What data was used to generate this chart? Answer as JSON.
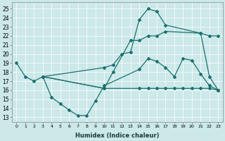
{
  "xlabel": "Humidex (Indice chaleur)",
  "bg_color": "#cce8e8",
  "line_color": "#1a7070",
  "xlim": [
    -0.5,
    23.5
  ],
  "ylim": [
    12.5,
    25.7
  ],
  "yticks": [
    13,
    14,
    15,
    16,
    17,
    18,
    19,
    20,
    21,
    22,
    23,
    24,
    25
  ],
  "xticks": [
    0,
    1,
    2,
    3,
    4,
    5,
    6,
    7,
    8,
    9,
    10,
    11,
    12,
    13,
    14,
    15,
    16,
    17,
    18,
    19,
    20,
    21,
    22,
    23
  ],
  "line1_x": [
    0,
    1,
    2,
    3,
    10,
    11,
    12,
    13,
    14,
    15,
    16,
    17,
    21,
    22,
    23
  ],
  "line1_y": [
    19,
    17.5,
    17,
    17.5,
    18.5,
    18.8,
    20.0,
    20.2,
    23.8,
    25.0,
    24.7,
    23.2,
    22.3,
    17.5,
    16
  ],
  "line2_x": [
    3,
    4,
    5,
    6,
    7,
    8,
    9,
    10,
    14,
    15,
    16,
    17,
    18,
    19,
    20,
    21,
    22,
    23
  ],
  "line2_y": [
    17.5,
    15.2,
    14.5,
    13.8,
    13.2,
    13.2,
    14.8,
    16.5,
    18.3,
    19.5,
    19.2,
    18.5,
    17.5,
    19.5,
    19.3,
    17.8,
    16.5,
    16
  ],
  "line3_x": [
    3,
    10,
    14,
    15,
    16,
    17,
    18,
    19,
    20,
    21,
    22,
    23
  ],
  "line3_y": [
    17.5,
    16.2,
    16.2,
    16.2,
    16.2,
    16.2,
    16.2,
    16.2,
    16.2,
    16.2,
    16.2,
    16.0
  ],
  "line4_x": [
    3,
    10,
    11,
    13,
    14,
    15,
    16,
    17,
    21,
    22,
    23
  ],
  "line4_y": [
    17.5,
    16.2,
    18.0,
    21.5,
    21.5,
    22.0,
    22.0,
    22.5,
    22.3,
    22.0,
    22.0
  ],
  "marker": "D",
  "markersize": 2.0,
  "linewidth": 0.9
}
